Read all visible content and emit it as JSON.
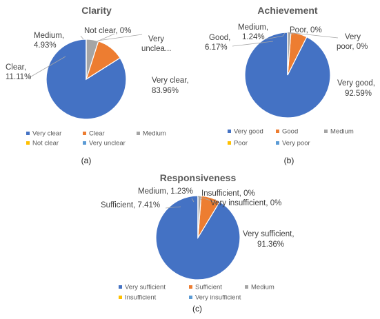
{
  "chart_data": [
    {
      "type": "pie",
      "title": "Clarity",
      "caption": "(a)",
      "categories": [
        "Very clear",
        "Clear",
        "Medium",
        "Not clear",
        "Very unclear"
      ],
      "values": [
        83.96,
        11.11,
        4.93,
        0,
        0
      ],
      "labels": [
        "Very clear, 83.96%",
        "Clear, 11.11%",
        "Medium, 4.93%",
        "Not clear, 0%",
        "Very unclea..."
      ],
      "colors": [
        "#4472C4",
        "#ED7D31",
        "#A5A5A5",
        "#FFC000",
        "#5B9BD5"
      ],
      "legend_position": "bottom"
    },
    {
      "type": "pie",
      "title": "Achievement",
      "caption": "(b)",
      "categories": [
        "Very good",
        "Good",
        "Medium",
        "Poor",
        "Very poor"
      ],
      "values": [
        92.59,
        6.17,
        1.24,
        0,
        0
      ],
      "labels": [
        "Very good, 92.59%",
        "Good, 6.17%",
        "Medium, 1.24%",
        "Poor, 0%",
        "Very poor, 0%"
      ],
      "colors": [
        "#4472C4",
        "#ED7D31",
        "#A5A5A5",
        "#FFC000",
        "#5B9BD5"
      ],
      "legend_position": "bottom"
    },
    {
      "type": "pie",
      "title": "Responsiveness",
      "caption": "(c)",
      "categories": [
        "Very sufficient",
        "Sufficient",
        "Medium",
        "Insufficient",
        "Very insufficient"
      ],
      "values": [
        91.36,
        7.41,
        1.23,
        0,
        0
      ],
      "labels": [
        "Very sufficient, 91.36%",
        "Sufficient, 7.41%",
        "Medium, 1.23%",
        "Insufficient, 0%",
        "Very insufficient, 0%"
      ],
      "colors": [
        "#4472C4",
        "#ED7D31",
        "#A5A5A5",
        "#FFC000",
        "#5B9BD5"
      ],
      "legend_position": "bottom"
    }
  ]
}
